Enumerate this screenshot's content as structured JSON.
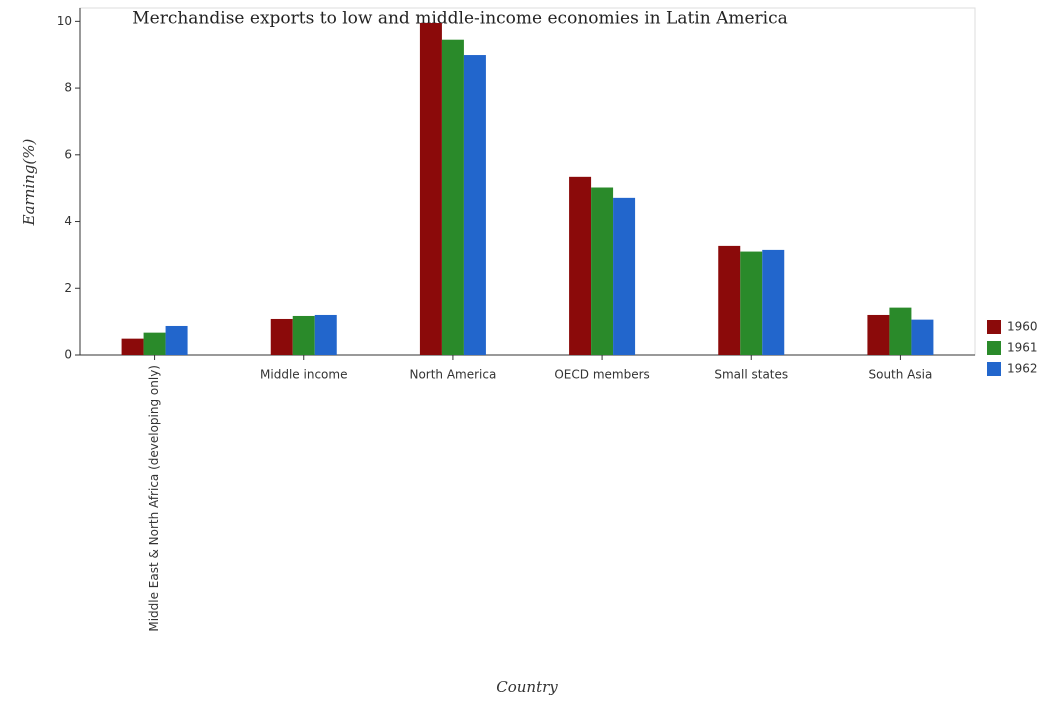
{
  "chart_data": {
    "type": "bar",
    "title": "Merchandise exports to low and middle-income economies in Latin America",
    "xlabel": "Country",
    "ylabel": "Earning(%)",
    "categories": [
      "Middle East & North Africa (developing only)",
      "Middle income",
      "North America",
      "OECD members",
      "Small states",
      "South Asia"
    ],
    "series": [
      {
        "name": "1960",
        "color": "#8b0a0a",
        "values": [
          0.49,
          1.08,
          9.95,
          5.34,
          3.27,
          1.2
        ]
      },
      {
        "name": "1961",
        "color": "#2a8a2a",
        "values": [
          0.67,
          1.17,
          9.45,
          5.02,
          3.1,
          1.42
        ]
      },
      {
        "name": "1962",
        "color": "#2266cc",
        "values": [
          0.87,
          1.2,
          8.99,
          4.71,
          3.15,
          1.06
        ]
      }
    ],
    "ylim": [
      0,
      10.4
    ],
    "yticks": [
      0,
      2,
      4,
      6,
      8,
      10
    ],
    "legend": "right"
  }
}
